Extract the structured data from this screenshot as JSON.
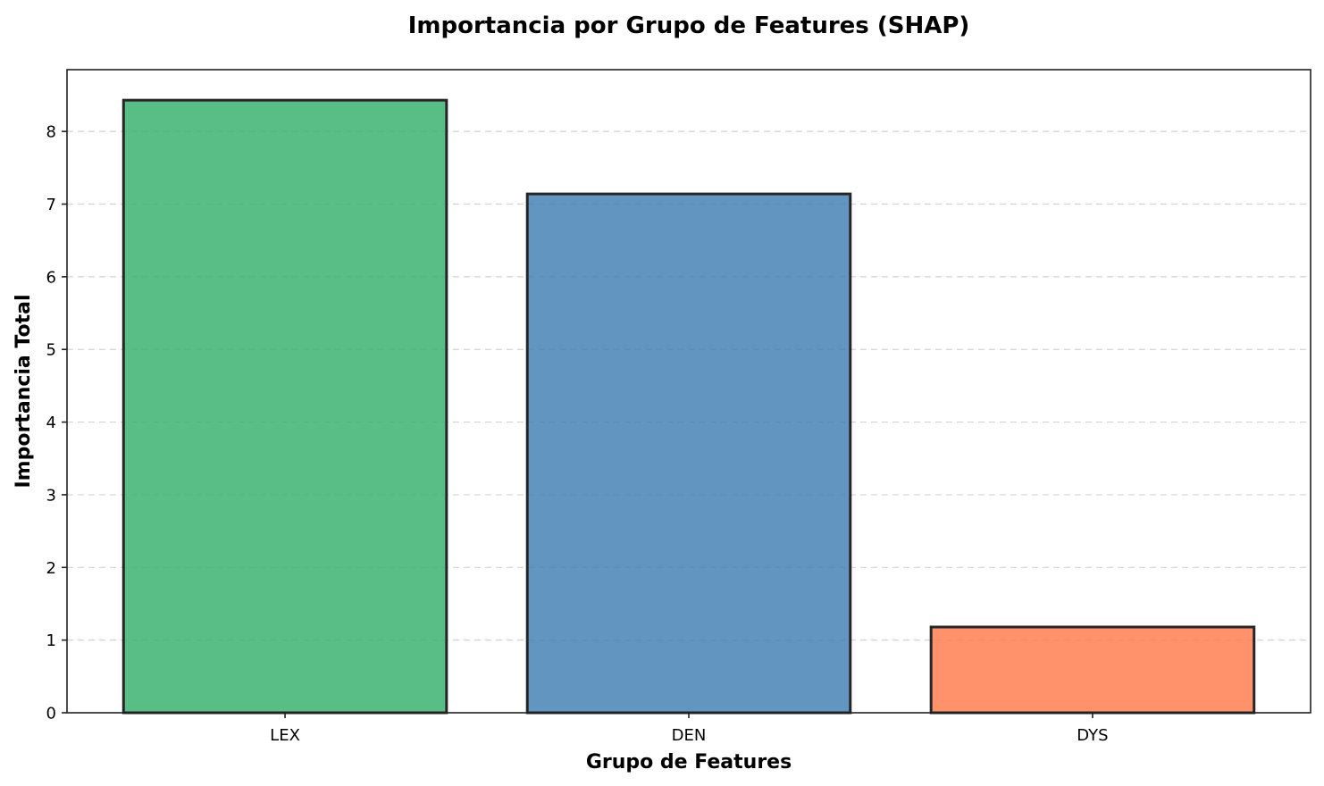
{
  "chart_data": {
    "type": "bar",
    "title": "Importancia por Grupo de Features (SHAP)",
    "xlabel": "Grupo de Features",
    "ylabel": "Importancia Total",
    "categories": [
      "LEX",
      "DEN",
      "DYS"
    ],
    "values": [
      8.43,
      7.14,
      1.18
    ],
    "colors": [
      "#3cb371",
      "#4682b4",
      "#ff7f50"
    ],
    "edge_color": "#262626",
    "ylim": [
      0,
      8.85
    ],
    "yticks": [
      "0",
      "1",
      "2",
      "3",
      "4",
      "5",
      "6",
      "7",
      "8"
    ],
    "grid": "y-dashed",
    "legend": "none"
  }
}
